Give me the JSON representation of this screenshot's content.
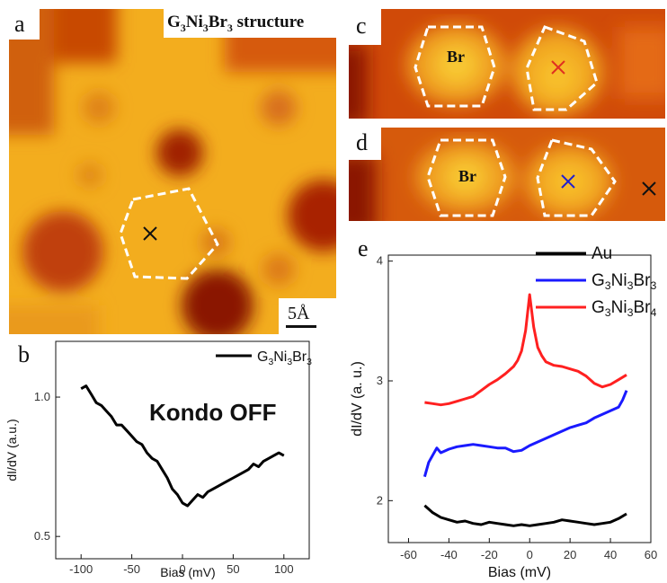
{
  "figure": {
    "panel_a": {
      "label": "a",
      "title_parts": [
        "G",
        "3",
        "Ni",
        "3",
        "Br",
        "3",
        " structure"
      ],
      "scale_bar": "5Å"
    },
    "panel_c": {
      "label": "c",
      "site_label": "Br",
      "marker_color": "#e03020"
    },
    "panel_d": {
      "label": "d",
      "site_label": "Br",
      "marker_color": "#2020d0"
    },
    "panel_b": {
      "label": "b",
      "annotation": "Kondo OFF"
    },
    "panel_e": {
      "label": "e"
    }
  },
  "chart_data": [
    {
      "type": "line",
      "panel": "b",
      "xlabel": "Bias (mV)",
      "ylabel": "dI/dV (a.u.)",
      "xlim": [
        -125,
        125
      ],
      "ylim": [
        0.42,
        1.2
      ],
      "xticks": [
        -100,
        -50,
        0,
        50,
        100
      ],
      "yticks": [
        0.5,
        1.0
      ],
      "legend_position": "top-right",
      "series": [
        {
          "name": "G3Ni3Br3",
          "name_parts": [
            "G",
            "3",
            "Ni",
            "3",
            "Br",
            "3"
          ],
          "color": "#000000",
          "x": [
            -100,
            -95,
            -90,
            -85,
            -80,
            -75,
            -70,
            -65,
            -60,
            -55,
            -50,
            -45,
            -40,
            -35,
            -30,
            -25,
            -20,
            -15,
            -10,
            -5,
            0,
            5,
            10,
            15,
            20,
            25,
            30,
            35,
            40,
            45,
            50,
            55,
            60,
            65,
            70,
            75,
            80,
            85,
            90,
            95,
            100
          ],
          "y": [
            1.03,
            1.04,
            1.01,
            0.98,
            0.97,
            0.95,
            0.93,
            0.9,
            0.9,
            0.88,
            0.86,
            0.84,
            0.83,
            0.8,
            0.78,
            0.77,
            0.74,
            0.71,
            0.67,
            0.65,
            0.62,
            0.61,
            0.63,
            0.65,
            0.64,
            0.66,
            0.67,
            0.68,
            0.69,
            0.7,
            0.71,
            0.72,
            0.73,
            0.74,
            0.76,
            0.75,
            0.77,
            0.78,
            0.79,
            0.8,
            0.79
          ]
        }
      ]
    },
    {
      "type": "line",
      "panel": "e",
      "xlabel": "Bias (mV)",
      "ylabel": "dI/dV (a. u.)",
      "xlim": [
        -70,
        60
      ],
      "ylim": [
        1.65,
        4.05
      ],
      "xticks": [
        -60,
        -40,
        -20,
        0,
        20,
        40,
        60
      ],
      "yticks": [
        2,
        3,
        4
      ],
      "legend_position": "top-right",
      "series": [
        {
          "name": "Au",
          "name_parts": [
            "Au"
          ],
          "color": "#000000",
          "x": [
            -52,
            -48,
            -44,
            -40,
            -36,
            -32,
            -28,
            -24,
            -20,
            -16,
            -12,
            -8,
            -4,
            0,
            4,
            8,
            12,
            16,
            20,
            24,
            28,
            32,
            36,
            40,
            44,
            48
          ],
          "y": [
            1.96,
            1.9,
            1.86,
            1.84,
            1.82,
            1.83,
            1.81,
            1.8,
            1.82,
            1.81,
            1.8,
            1.79,
            1.8,
            1.79,
            1.8,
            1.81,
            1.82,
            1.84,
            1.83,
            1.82,
            1.81,
            1.8,
            1.81,
            1.82,
            1.85,
            1.89
          ]
        },
        {
          "name": "G3Ni3Br3",
          "name_parts": [
            "G",
            "3",
            "Ni",
            "3",
            "Br",
            "3"
          ],
          "color": "#1a1aff",
          "x": [
            -52,
            -50,
            -48,
            -46,
            -44,
            -40,
            -36,
            -32,
            -28,
            -24,
            -20,
            -16,
            -12,
            -8,
            -4,
            0,
            4,
            8,
            12,
            16,
            20,
            24,
            28,
            32,
            36,
            40,
            44,
            46,
            48
          ],
          "y": [
            2.2,
            2.32,
            2.38,
            2.44,
            2.4,
            2.43,
            2.45,
            2.46,
            2.47,
            2.46,
            2.45,
            2.44,
            2.44,
            2.41,
            2.42,
            2.46,
            2.49,
            2.52,
            2.55,
            2.58,
            2.61,
            2.63,
            2.65,
            2.69,
            2.72,
            2.75,
            2.78,
            2.84,
            2.92
          ]
        },
        {
          "name": "G3Ni3Br4",
          "name_parts": [
            "G",
            "3",
            "Ni",
            "3",
            "Br",
            "4"
          ],
          "color": "#ff2020",
          "x": [
            -52,
            -48,
            -44,
            -40,
            -36,
            -32,
            -28,
            -24,
            -20,
            -16,
            -12,
            -8,
            -6,
            -4,
            -2,
            0,
            2,
            4,
            6,
            8,
            12,
            16,
            20,
            24,
            28,
            32,
            36,
            40,
            44,
            48
          ],
          "y": [
            2.82,
            2.81,
            2.8,
            2.81,
            2.83,
            2.85,
            2.87,
            2.92,
            2.97,
            3.01,
            3.06,
            3.12,
            3.17,
            3.25,
            3.42,
            3.72,
            3.45,
            3.28,
            3.21,
            3.16,
            3.13,
            3.12,
            3.1,
            3.08,
            3.04,
            2.98,
            2.95,
            2.97,
            3.01,
            3.05
          ]
        }
      ]
    }
  ]
}
